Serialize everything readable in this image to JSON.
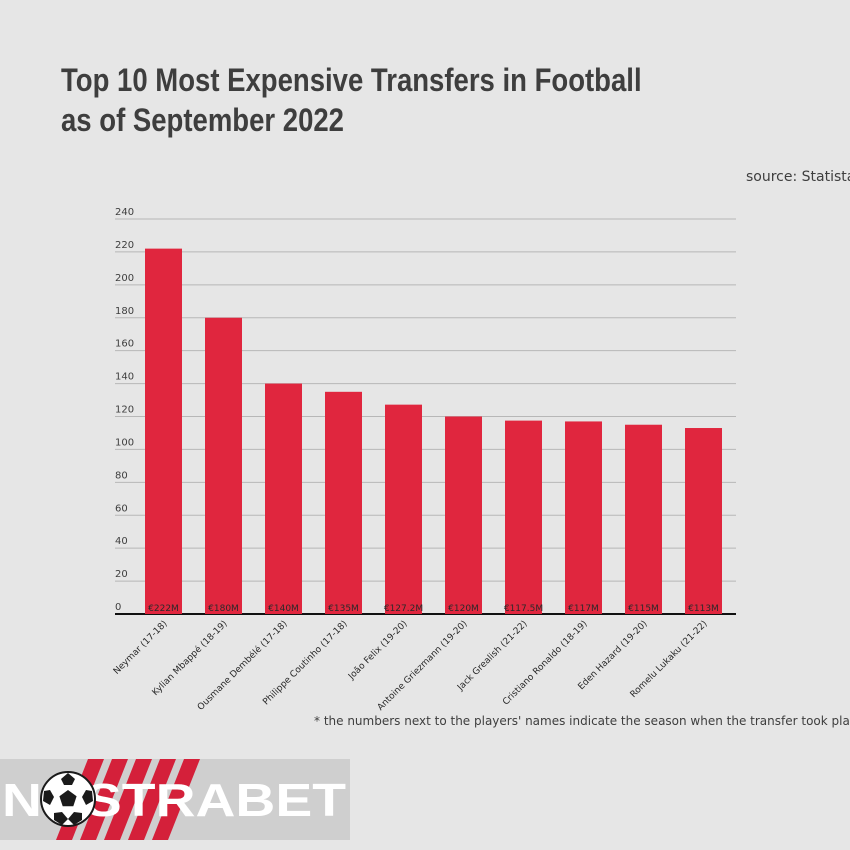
{
  "title": "Top 10 Most Expensive Transfers in Football as of September 2022",
  "source": "source: Statista",
  "footnote": "* the numbers next to the players' names indicate the season when the transfer took place",
  "logo": {
    "text": "NOSTRABET",
    "icon": "soccer-ball-icon"
  },
  "colors": {
    "bar": "#e0263e",
    "background": "#e6e6e6",
    "text": "#3e3e3e",
    "grid": "#b7b7b7"
  },
  "chart_data": {
    "type": "bar",
    "categories": [
      "Neymar (17-18)",
      "Kylian Mbappé (18-19)",
      "Ousmane Dembélé (17-18)",
      "Philippe Coutinho (17-18)",
      "João Felix (19-20)",
      "Antoine Griezmann (19-20)",
      "Jack Grealish (21-22)",
      "Cristiano Ronaldo (18-19)",
      "Eden Hazard (19-20)",
      "Romelu Lukaku (21-22)"
    ],
    "values": [
      222,
      180,
      140,
      135,
      127.2,
      120,
      117.5,
      117,
      115,
      113
    ],
    "data_labels": [
      "€222M",
      "€180M",
      "€140M",
      "€135M",
      "€127.2M",
      "€120M",
      "€117.5M",
      "€117M",
      "€115M",
      "€113M"
    ],
    "yticks": [
      0,
      20,
      40,
      60,
      80,
      100,
      120,
      140,
      160,
      180,
      200,
      220,
      240
    ],
    "ylim": [
      0,
      240
    ],
    "grid": true,
    "legend": "none"
  }
}
